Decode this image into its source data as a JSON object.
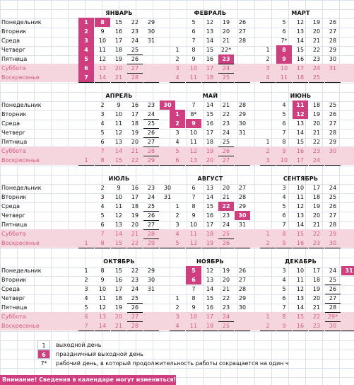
{
  "day_names": [
    "Понедельник",
    "Вторник",
    "Среда",
    "Четверг",
    "Пятница",
    "Суббота",
    "Воскресенье"
  ],
  "months": [
    {
      "name": "ЯНВАРЬ",
      "weeks": [
        [
          "1",
          "2",
          "3",
          "4",
          "5",
          "6",
          "7"
        ],
        [
          "8",
          "9",
          "10",
          "11",
          "12",
          "13",
          "14"
        ],
        [
          "15",
          "16",
          "17",
          "18",
          "19",
          "20",
          "21"
        ],
        [
          "22",
          "23",
          "24",
          "25",
          "26",
          "27",
          "28"
        ],
        [
          "29",
          "30",
          "31",
          "",
          "",
          "",
          ""
        ]
      ]
    },
    {
      "name": "ФЕВРАЛЬ",
      "weeks": [
        [
          "",
          "",
          "",
          "1",
          "2",
          "3",
          "4"
        ],
        [
          "5",
          "6",
          "7",
          "8",
          "9",
          "10",
          "11"
        ],
        [
          "12",
          "13",
          "14",
          "15",
          "16",
          "17",
          "18"
        ],
        [
          "19",
          "20",
          "21",
          "22*",
          "23",
          "24",
          "25"
        ],
        [
          "26",
          "27",
          "28",
          "",
          "",
          "",
          ""
        ]
      ]
    },
    {
      "name": "МАРТ",
      "weeks": [
        [
          "",
          "",
          "",
          "1",
          "2",
          "3",
          "4"
        ],
        [
          "5",
          "6",
          "7*",
          "8",
          "9",
          "10",
          "11"
        ],
        [
          "12",
          "13",
          "14",
          "15",
          "16",
          "17",
          "18"
        ],
        [
          "19",
          "20",
          "21",
          "22",
          "23",
          "24",
          "25"
        ],
        [
          "26",
          "27",
          "28",
          "29",
          "30",
          "31",
          ""
        ]
      ]
    },
    {
      "name": "АПРЕЛЬ",
      "weeks": [
        [
          "",
          "",
          "",
          "",
          "",
          "",
          "1"
        ],
        [
          "2",
          "3",
          "4",
          "5",
          "6",
          "7",
          "8"
        ],
        [
          "9",
          "10",
          "11",
          "12",
          "13",
          "14",
          "15"
        ],
        [
          "16",
          "17",
          "18",
          "19",
          "20",
          "21",
          "22"
        ],
        [
          "23",
          "24",
          "25",
          "26",
          "27",
          "28",
          "29"
        ],
        [
          "30",
          "",
          "",
          "",
          "",
          "",
          ""
        ]
      ]
    },
    {
      "name": "МАЙ",
      "weeks": [
        [
          "",
          "1",
          "2",
          "3",
          "4",
          "5",
          "6"
        ],
        [
          "7",
          "8*",
          "9",
          "10",
          "11",
          "12",
          "13"
        ],
        [
          "14",
          "15",
          "16",
          "17",
          "18",
          "19",
          "20"
        ],
        [
          "21",
          "22",
          "23",
          "24",
          "25",
          "26",
          "27"
        ],
        [
          "28",
          "29",
          "30",
          "31",
          "",
          "",
          ""
        ]
      ]
    },
    {
      "name": "ИЮНЬ",
      "weeks": [
        [
          "",
          "",
          "",
          "",
          "1",
          "2",
          "3"
        ],
        [
          "4",
          "5",
          "6",
          "7",
          "8",
          "9",
          "10"
        ],
        [
          "11",
          "12",
          "13",
          "14",
          "15",
          "16",
          "17"
        ],
        [
          "18",
          "19",
          "20",
          "21",
          "22",
          "23",
          "24"
        ],
        [
          "25",
          "26",
          "27",
          "28",
          "29",
          "30",
          ""
        ]
      ]
    },
    {
      "name": "ИЮЛЬ",
      "weeks": [
        [
          "",
          "",
          "",
          "",
          "",
          "",
          "1"
        ],
        [
          "2",
          "3",
          "4",
          "5",
          "6",
          "7",
          "8"
        ],
        [
          "9",
          "10",
          "11",
          "12",
          "13",
          "14",
          "15"
        ],
        [
          "16",
          "17",
          "18",
          "19",
          "20",
          "21",
          "22"
        ],
        [
          "23",
          "24",
          "25",
          "26",
          "27",
          "28",
          "29"
        ],
        [
          "30",
          "31",
          "",
          "",
          "",
          "",
          ""
        ]
      ]
    },
    {
      "name": "АВГУСТ",
      "weeks": [
        [
          "",
          "",
          "1",
          "2",
          "3",
          "4",
          "5"
        ],
        [
          "6",
          "7",
          "8",
          "9",
          "10",
          "11",
          "12"
        ],
        [
          "13",
          "14",
          "15",
          "16",
          "17",
          "18",
          "19"
        ],
        [
          "20",
          "21",
          "22",
          "23",
          "24",
          "25",
          "26"
        ],
        [
          "27",
          "28",
          "29",
          "30",
          "31",
          "",
          ""
        ]
      ]
    },
    {
      "name": "СЕНТЯБРЬ",
      "weeks": [
        [
          "",
          "",
          "",
          "",
          "",
          "1",
          "2"
        ],
        [
          "3",
          "4",
          "5",
          "6",
          "7",
          "8",
          "9"
        ],
        [
          "10",
          "11",
          "12",
          "13",
          "14",
          "15",
          "16"
        ],
        [
          "17",
          "18",
          "19",
          "20",
          "21",
          "22",
          "23"
        ],
        [
          "24",
          "25",
          "26",
          "27",
          "28",
          "29",
          "30"
        ]
      ]
    },
    {
      "name": "ОКТЯБРЬ",
      "weeks": [
        [
          "1",
          "2",
          "3",
          "4",
          "5",
          "6",
          "7"
        ],
        [
          "8",
          "9",
          "10",
          "11",
          "12",
          "13",
          "14"
        ],
        [
          "15",
          "16",
          "17",
          "18",
          "19",
          "20",
          "21"
        ],
        [
          "22",
          "23",
          "24",
          "25",
          "26",
          "27",
          "28"
        ],
        [
          "29",
          "30",
          "31",
          "",
          "",
          "",
          ""
        ]
      ]
    },
    {
      "name": "НОЯБРЬ",
      "weeks": [
        [
          "",
          "",
          "",
          "1",
          "2",
          "3",
          "4"
        ],
        [
          "5",
          "6",
          "7",
          "8",
          "9",
          "10",
          "11"
        ],
        [
          "12",
          "13",
          "14",
          "15",
          "16",
          "17",
          "18"
        ],
        [
          "19",
          "20",
          "21",
          "22",
          "23",
          "24",
          "25"
        ],
        [
          "26",
          "27",
          "28",
          "29",
          "30",
          "",
          ""
        ]
      ]
    },
    {
      "name": "ДЕКАБРЬ",
      "weeks": [
        [
          "",
          "",
          "",
          "",
          "",
          "1",
          "2"
        ],
        [
          "3",
          "4",
          "5",
          "6",
          "7",
          "8",
          "9"
        ],
        [
          "10",
          "11",
          "12",
          "13",
          "14",
          "15",
          "16"
        ],
        [
          "17",
          "18",
          "19",
          "20",
          "21",
          "22",
          "23"
        ],
        [
          "24",
          "25",
          "26",
          "27",
          "28",
          "29*",
          "30"
        ],
        [
          "31",
          "",
          "",
          "",
          "",
          "",
          ""
        ]
      ]
    }
  ],
  "holidays": [
    "1-1",
    "1-2",
    "1-3",
    "1-4",
    "1-5",
    "1-6",
    "1-7",
    "1-8",
    "2-23",
    "3-8",
    "3-9",
    "4-30",
    "5-1",
    "5-2",
    "5-9",
    "6-11",
    "6-12",
    "8-22",
    "8-30",
    "11-5",
    "11-6",
    "12-31"
  ],
  "colors": {
    "holiday": "#cf3f80",
    "weekend_bg": "#f5d6de",
    "weekend_text": "#d65a85"
  },
  "legend": [
    {
      "sample": "1",
      "text": "выходной день"
    },
    {
      "sample": "6",
      "text": "праздничный выходной день"
    },
    {
      "sample": "7*",
      "text": "рабочий день, в который продолжительность работы сокращается на один ч"
    }
  ],
  "warning": "Внимание! Сведения в календаре могут измениться!"
}
